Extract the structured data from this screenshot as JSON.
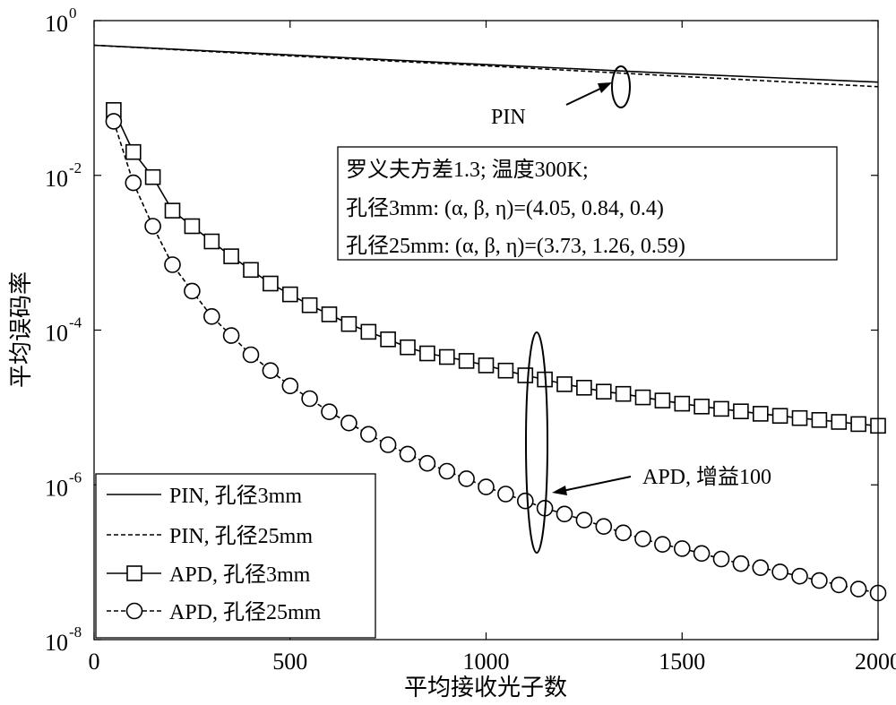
{
  "chart_data": {
    "type": "line",
    "title": "",
    "xlabel": "平均接收光子数",
    "ylabel": "平均误码率",
    "xlim": [
      0,
      2000
    ],
    "ylim": [
      1e-08,
      1
    ],
    "yscale": "log",
    "x_ticks": [
      "0",
      "500",
      "1000",
      "1500",
      "2000"
    ],
    "y_ticks": [
      {
        "base": "10",
        "exp": "-8"
      },
      {
        "base": "10",
        "exp": "-6"
      },
      {
        "base": "10",
        "exp": "-4"
      },
      {
        "base": "10",
        "exp": "-2"
      },
      {
        "base": "10",
        "exp": "0"
      }
    ],
    "grid": false,
    "legend_position": "bottom-left",
    "series": [
      {
        "name": "PIN, 孔径3mm",
        "style": "solid",
        "marker": "none",
        "x": [
          0,
          500,
          1000,
          1500,
          2000
        ],
        "y": [
          0.48,
          0.36,
          0.27,
          0.205,
          0.16
        ]
      },
      {
        "name": "PIN, 孔径25mm",
        "style": "dashed",
        "marker": "none",
        "x": [
          0,
          500,
          1000,
          1500,
          2000
        ],
        "y": [
          0.48,
          0.35,
          0.26,
          0.19,
          0.14
        ]
      },
      {
        "name": "APD, 孔径3mm",
        "style": "solid",
        "marker": "square",
        "x": [
          50,
          100,
          150,
          200,
          250,
          300,
          350,
          400,
          450,
          500,
          550,
          600,
          650,
          700,
          750,
          800,
          850,
          900,
          950,
          1000,
          1050,
          1100,
          1150,
          1200,
          1250,
          1300,
          1350,
          1400,
          1450,
          1500,
          1550,
          1600,
          1650,
          1700,
          1750,
          1800,
          1850,
          1900,
          1950,
          2000
        ],
        "y": [
          0.07,
          0.02,
          0.0095,
          0.0035,
          0.0022,
          0.0014,
          0.0009,
          0.0006,
          0.0004,
          0.00029,
          0.00021,
          0.00016,
          0.00012,
          9.5e-05,
          7.6e-05,
          6e-05,
          5e-05,
          4.5e-05,
          4e-05,
          3.5e-05,
          3e-05,
          2.6e-05,
          2.3e-05,
          2e-05,
          1.8e-05,
          1.6e-05,
          1.5e-05,
          1.35e-05,
          1.23e-05,
          1.12e-05,
          1.03e-05,
          9.6e-06,
          8.9e-06,
          8.3e-06,
          7.8e-06,
          7.3e-06,
          6.9e-06,
          6.5e-06,
          6.1e-06,
          5.8e-06
        ]
      },
      {
        "name": "APD, 孔径25mm",
        "style": "dashed",
        "marker": "circle",
        "x": [
          50,
          100,
          150,
          200,
          250,
          300,
          350,
          400,
          450,
          500,
          550,
          600,
          650,
          700,
          750,
          800,
          850,
          900,
          950,
          1000,
          1050,
          1100,
          1150,
          1200,
          1250,
          1300,
          1350,
          1400,
          1450,
          1500,
          1550,
          1600,
          1650,
          1700,
          1750,
          1800,
          1850,
          1900,
          1950,
          2000
        ],
        "y": [
          0.05,
          0.008,
          0.0022,
          0.0007,
          0.00032,
          0.00015,
          8.5e-05,
          4.8e-05,
          3e-05,
          1.9e-05,
          1.3e-05,
          8.8e-06,
          6.3e-06,
          4.5e-06,
          3.3e-06,
          2.5e-06,
          1.9e-06,
          1.5e-06,
          1.2e-06,
          9.4e-07,
          7.6e-07,
          6.2e-07,
          5e-07,
          4.2e-07,
          3.5e-07,
          2.9e-07,
          2.4e-07,
          2e-07,
          1.7e-07,
          1.5e-07,
          1.3e-07,
          1.1e-07,
          9.6e-08,
          8.5e-08,
          7.5e-08,
          6.6e-08,
          5.8e-08,
          5.1e-08,
          4.5e-08,
          4e-08
        ]
      }
    ],
    "annotations": {
      "info_box": [
        "罗义夫方差1.3;   温度300K;",
        "孔径3mm: (α, β, η)=(4.05, 0.84, 0.4)",
        "孔径25mm: (α, β, η)=(3.73, 1.26, 0.59)"
      ],
      "pin_label": "PIN",
      "apd_label": "APD, 增益100"
    }
  }
}
